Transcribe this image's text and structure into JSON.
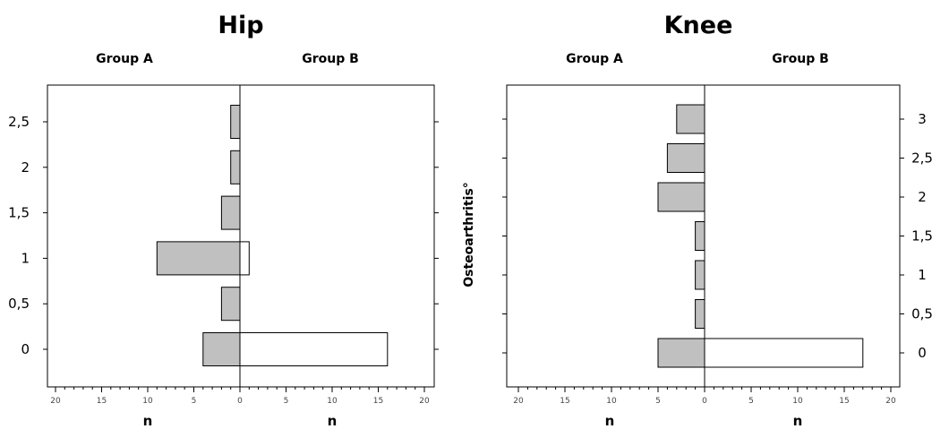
{
  "chart_data": [
    {
      "type": "bar",
      "orientation": "horizontal",
      "layout": "back-to-back pyramid",
      "title": "Hip",
      "left_group": "Group A",
      "right_group": "Group B",
      "xlabel_left": "n",
      "xlabel_right": "n",
      "ylabel": "",
      "categories": [
        "0",
        "0,5",
        "1",
        "1,5",
        "2",
        "2,5"
      ],
      "xlim": [
        0,
        20
      ],
      "x_ticks": [
        "20",
        "15",
        "10",
        "5",
        "0",
        "5",
        "10",
        "15",
        "20"
      ],
      "y_axis_side": "left",
      "series": [
        {
          "name": "Group A",
          "values": [
            4,
            2,
            9,
            2,
            1,
            1
          ],
          "color": "#c0c0c0"
        },
        {
          "name": "Group B",
          "values": [
            16,
            0,
            1,
            0,
            0,
            0
          ],
          "color": "#ffffff"
        }
      ]
    },
    {
      "type": "bar",
      "orientation": "horizontal",
      "layout": "back-to-back pyramid",
      "title": "Knee",
      "left_group": "Group A",
      "right_group": "Group B",
      "xlabel_left": "n",
      "xlabel_right": "n",
      "ylabel": "Osteoarthritis°",
      "categories": [
        "0",
        "0,5",
        "1",
        "1,5",
        "2",
        "2,5",
        "3"
      ],
      "xlim": [
        0,
        20
      ],
      "x_ticks": [
        "20",
        "15",
        "10",
        "5",
        "0",
        "5",
        "10",
        "15",
        "20"
      ],
      "y_axis_side": "right",
      "series": [
        {
          "name": "Group A",
          "values": [
            5,
            1,
            1,
            1,
            5,
            4,
            3
          ],
          "color": "#c0c0c0"
        },
        {
          "name": "Group B",
          "values": [
            17,
            0,
            0,
            0,
            0,
            0,
            0
          ],
          "color": "#ffffff"
        }
      ]
    }
  ]
}
